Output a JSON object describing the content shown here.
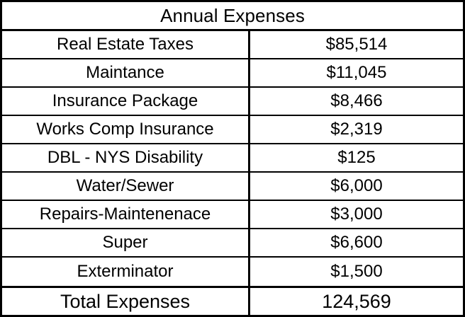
{
  "table": {
    "title": "Annual Expenses",
    "rows": [
      {
        "label": "Real Estate Taxes",
        "value": "$85,514"
      },
      {
        "label": "Maintance",
        "value": "$11,045"
      },
      {
        "label": "Insurance Package",
        "value": "$8,466"
      },
      {
        "label": "Works Comp Insurance",
        "value": "$2,319"
      },
      {
        "label": "DBL - NYS Disability",
        "value": "$125"
      },
      {
        "label": "Water/Sewer",
        "value": "$6,000"
      },
      {
        "label": "Repairs-Maintenenace",
        "value": "$3,000"
      },
      {
        "label": "Super",
        "value": "$6,600"
      },
      {
        "label": "Exterminator",
        "value": "$1,500"
      }
    ],
    "total": {
      "label": "Total Expenses",
      "value": "124,569"
    }
  }
}
